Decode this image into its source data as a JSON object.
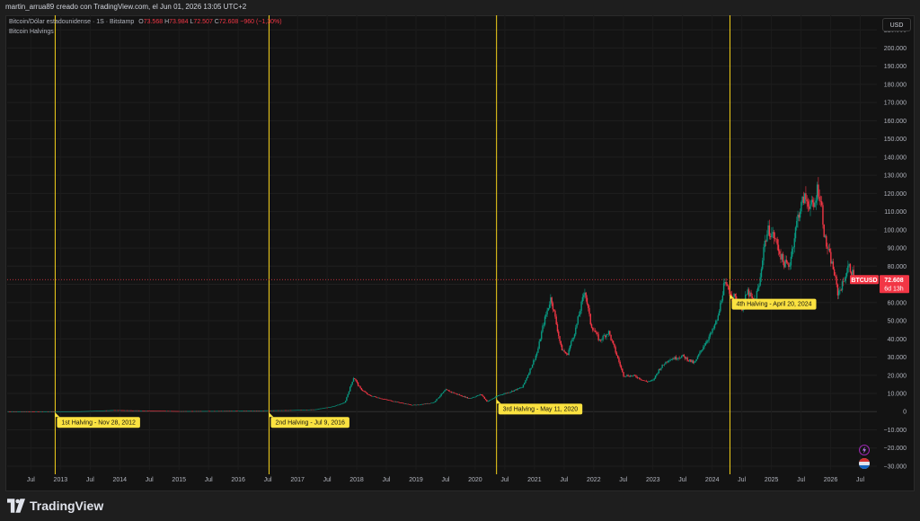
{
  "header": {
    "caption": "martin_arrua89 creado con TradingView.com, el Jun 01, 2026 13:05 UTC+2"
  },
  "legend": {
    "symbol_line": "Bitcoin/Dólar estadounidense · 1S · Bitstamp",
    "o_label": "O",
    "o_value": "73.568",
    "h_label": "H",
    "h_value": "73.984",
    "l_label": "L",
    "l_value": "72.507",
    "c_label": "C",
    "c_value": "72.608",
    "change": "−960 (−1,30%)",
    "indicator": "Bitcoin Halvings"
  },
  "currency_button": "USD",
  "price_tag": {
    "symbol": "BTCUSD",
    "price": "72.608",
    "countdown": "6d 13h",
    "value": 72608
  },
  "brand": "TradingView",
  "colors": {
    "up": "#089981",
    "down": "#f23645",
    "halving_line": "#f7d31b",
    "label_bg": "#fbe240",
    "background": "#131313"
  },
  "chart_data": {
    "type": "candlestick",
    "y_tick_labels": [
      "210.000",
      "200.000",
      "190.000",
      "180.000",
      "170.000",
      "160.000",
      "150.000",
      "140.000",
      "130.000",
      "120.000",
      "110.000",
      "100.000",
      "90.000",
      "80.000",
      "70.000",
      "60.000",
      "50.000",
      "40.000",
      "30.000",
      "20.000",
      "10.000",
      "0",
      "−10.000",
      "−20.000",
      "−30.000"
    ],
    "y_ticks": [
      210000,
      200000,
      190000,
      180000,
      170000,
      160000,
      150000,
      140000,
      130000,
      120000,
      110000,
      100000,
      90000,
      80000,
      70000,
      60000,
      50000,
      40000,
      30000,
      20000,
      10000,
      0,
      -10000,
      -20000,
      -30000
    ],
    "ylim": [
      -32000,
      218000
    ],
    "x_tick_labels": [
      "Jul",
      "2013",
      "Jul",
      "2014",
      "Jul",
      "2015",
      "Jul",
      "2016",
      "Jul",
      "2017",
      "Jul",
      "2018",
      "Jul",
      "2019",
      "Jul",
      "2020",
      "Jul",
      "2021",
      "Jul",
      "2022",
      "Jul",
      "2023",
      "Jul",
      "2024",
      "Jul",
      "2025",
      "Jul",
      "2026",
      "Jul"
    ],
    "x_ticks": [
      2012.5,
      2013,
      2013.5,
      2014,
      2014.5,
      2015,
      2015.5,
      2016,
      2016.5,
      2017,
      2017.5,
      2018,
      2018.5,
      2019,
      2019.5,
      2020,
      2020.5,
      2021,
      2021.5,
      2022,
      2022.5,
      2023,
      2023.5,
      2024,
      2024.5,
      2025,
      2025.5,
      2026,
      2026.5
    ],
    "xlim": [
      2012.1,
      2026.78
    ],
    "halvings": [
      {
        "label": "1st Halving - Nov 28, 2012",
        "x": 2012.91
      },
      {
        "label": "2nd Halving - Jul 9, 2016",
        "x": 2016.52
      },
      {
        "label": "3rd Halving - May 11, 2020",
        "x": 2020.36
      },
      {
        "label": "4th Halving - April 20, 2024",
        "x": 2024.3
      }
    ],
    "price_path": [
      [
        2012.1,
        10
      ],
      [
        2012.9,
        12
      ],
      [
        2013.3,
        100
      ],
      [
        2013.9,
        800
      ],
      [
        2014.5,
        550
      ],
      [
        2015.0,
        250
      ],
      [
        2015.9,
        400
      ],
      [
        2016.5,
        650
      ],
      [
        2016.9,
        800
      ],
      [
        2017.3,
        1200
      ],
      [
        2017.6,
        2800
      ],
      [
        2017.8,
        5000
      ],
      [
        2017.95,
        19000
      ],
      [
        2018.05,
        13000
      ],
      [
        2018.2,
        9000
      ],
      [
        2018.5,
        6500
      ],
      [
        2018.9,
        3800
      ],
      [
        2019.0,
        3600
      ],
      [
        2019.3,
        5000
      ],
      [
        2019.5,
        12000
      ],
      [
        2019.7,
        9500
      ],
      [
        2019.9,
        7200
      ],
      [
        2020.1,
        9500
      ],
      [
        2020.2,
        5500
      ],
      [
        2020.4,
        9000
      ],
      [
        2020.6,
        11000
      ],
      [
        2020.8,
        13500
      ],
      [
        2020.95,
        25000
      ],
      [
        2021.05,
        33000
      ],
      [
        2021.15,
        48000
      ],
      [
        2021.28,
        63000
      ],
      [
        2021.45,
        35000
      ],
      [
        2021.55,
        31000
      ],
      [
        2021.7,
        46000
      ],
      [
        2021.85,
        67000
      ],
      [
        2021.95,
        48000
      ],
      [
        2022.1,
        39000
      ],
      [
        2022.25,
        44000
      ],
      [
        2022.4,
        30000
      ],
      [
        2022.5,
        20000
      ],
      [
        2022.7,
        19500
      ],
      [
        2022.88,
        16500
      ],
      [
        2023.0,
        17000
      ],
      [
        2023.1,
        23000
      ],
      [
        2023.25,
        28500
      ],
      [
        2023.5,
        30500
      ],
      [
        2023.7,
        26500
      ],
      [
        2023.85,
        36000
      ],
      [
        2024.0,
        44000
      ],
      [
        2024.1,
        52000
      ],
      [
        2024.2,
        70000
      ],
      [
        2024.35,
        64000
      ],
      [
        2024.5,
        57000
      ],
      [
        2024.6,
        66000
      ],
      [
        2024.7,
        60000
      ],
      [
        2024.8,
        70000
      ],
      [
        2024.87,
        91000
      ],
      [
        2024.95,
        100000
      ],
      [
        2025.05,
        96000
      ],
      [
        2025.2,
        82000
      ],
      [
        2025.3,
        80000
      ],
      [
        2025.38,
        95000
      ],
      [
        2025.45,
        108000
      ],
      [
        2025.55,
        118000
      ],
      [
        2025.62,
        115000
      ],
      [
        2025.72,
        112000
      ],
      [
        2025.78,
        124000
      ],
      [
        2025.85,
        112000
      ],
      [
        2025.9,
        95000
      ],
      [
        2025.97,
        87000
      ],
      [
        2026.05,
        78000
      ],
      [
        2026.12,
        65000
      ],
      [
        2026.2,
        70000
      ],
      [
        2026.3,
        80000
      ],
      [
        2026.36,
        77000
      ],
      [
        2026.41,
        72608
      ]
    ]
  }
}
